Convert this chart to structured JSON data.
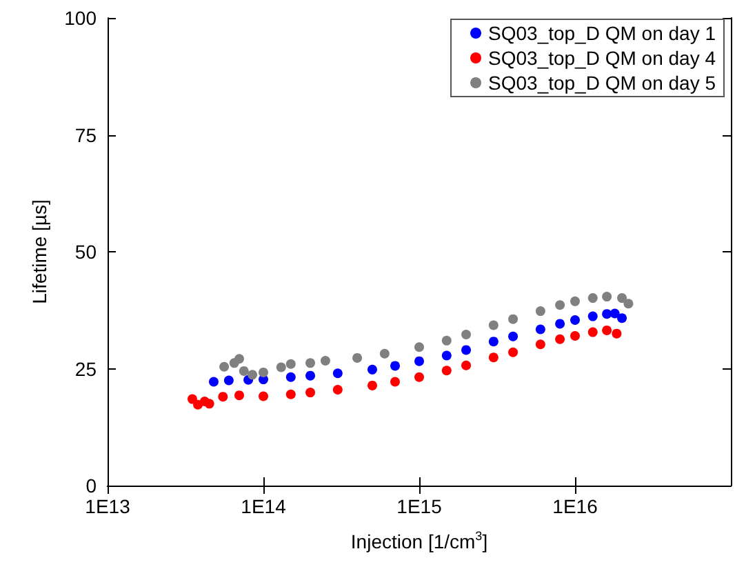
{
  "chart_data": {
    "type": "scatter",
    "xlabel": "Injection [1/cm$^{3}$]",
    "ylabel": "Lifetime [µs]",
    "log": "x",
    "marker": "circle",
    "grid": false,
    "legend": "top right",
    "xlim": [
      10000000000000.0,
      1e+17
    ],
    "xticks": [
      {
        "value": 10000000000000.0,
        "label": "1E13"
      },
      {
        "value": 100000000000000.0,
        "label": "1E14"
      },
      {
        "value": 1000000000000000.0,
        "label": "1E15"
      },
      {
        "value": 1e+16,
        "label": "1E16"
      }
    ],
    "ylim": [
      0,
      100
    ],
    "yticks": [
      0,
      25,
      50,
      75,
      100
    ],
    "series": [
      {
        "name": "SQ03_top_D QM on day 1",
        "color": "#0000ff",
        "x": [
          48000000000000.0,
          60000000000000.0,
          80000000000000.0,
          100000000000000.0,
          150000000000000.0,
          200000000000000.0,
          300000000000000.0,
          500000000000000.0,
          700000000000000.0,
          1000000000000000.0,
          1500000000000000.0,
          2000000000000000.0,
          3000000000000000.0,
          4000000000000000.0,
          6000000000000000.0,
          8000000000000000.0,
          1e+16,
          1.3e+16,
          1.6e+16,
          1.8e+16,
          2e+16
        ],
        "values": [
          22.2,
          22.5,
          22.6,
          22.7,
          23.2,
          23.5,
          24,
          24.8,
          25.6,
          26.6,
          27.8,
          29,
          30.8,
          31.9,
          33.4,
          34.6,
          35.4,
          36.2,
          36.7,
          36.8,
          35.8
        ]
      },
      {
        "name": "SQ03_top_D QM on day 4",
        "color": "#ff0000",
        "x": [
          35000000000000.0,
          38000000000000.0,
          42000000000000.0,
          45000000000000.0,
          55000000000000.0,
          70000000000000.0,
          100000000000000.0,
          150000000000000.0,
          200000000000000.0,
          300000000000000.0,
          500000000000000.0,
          700000000000000.0,
          1000000000000000.0,
          1500000000000000.0,
          2000000000000000.0,
          3000000000000000.0,
          4000000000000000.0,
          6000000000000000.0,
          8000000000000000.0,
          1e+16,
          1.3e+16,
          1.6e+16,
          1.85e+16
        ],
        "values": [
          18.5,
          17.3,
          18,
          17.5,
          19,
          19.3,
          19.1,
          19.5,
          19.9,
          20.5,
          21.4,
          22.2,
          23.2,
          24.6,
          25.7,
          27.4,
          28.5,
          30.2,
          31.3,
          32,
          32.8,
          33.2,
          32.5
        ]
      },
      {
        "name": "SQ03_top_D QM on day 5",
        "color": "#808080",
        "x": [
          56000000000000.0,
          65000000000000.0,
          70000000000000.0,
          75000000000000.0,
          85000000000000.0,
          100000000000000.0,
          130000000000000.0,
          150000000000000.0,
          200000000000000.0,
          250000000000000.0,
          400000000000000.0,
          600000000000000.0,
          1000000000000000.0,
          1500000000000000.0,
          2000000000000000.0,
          3000000000000000.0,
          4000000000000000.0,
          6000000000000000.0,
          8000000000000000.0,
          1e+16,
          1.3e+16,
          1.6e+16,
          2e+16,
          2.2e+16
        ],
        "values": [
          25.4,
          26.2,
          27.1,
          24.5,
          23.7,
          24.2,
          25.3,
          26,
          26.2,
          26.7,
          27.3,
          28.2,
          29.6,
          31,
          32.3,
          34.3,
          35.6,
          37.3,
          38.6,
          39.4,
          40.1,
          40.4,
          40.1,
          38.9
        ]
      }
    ]
  }
}
